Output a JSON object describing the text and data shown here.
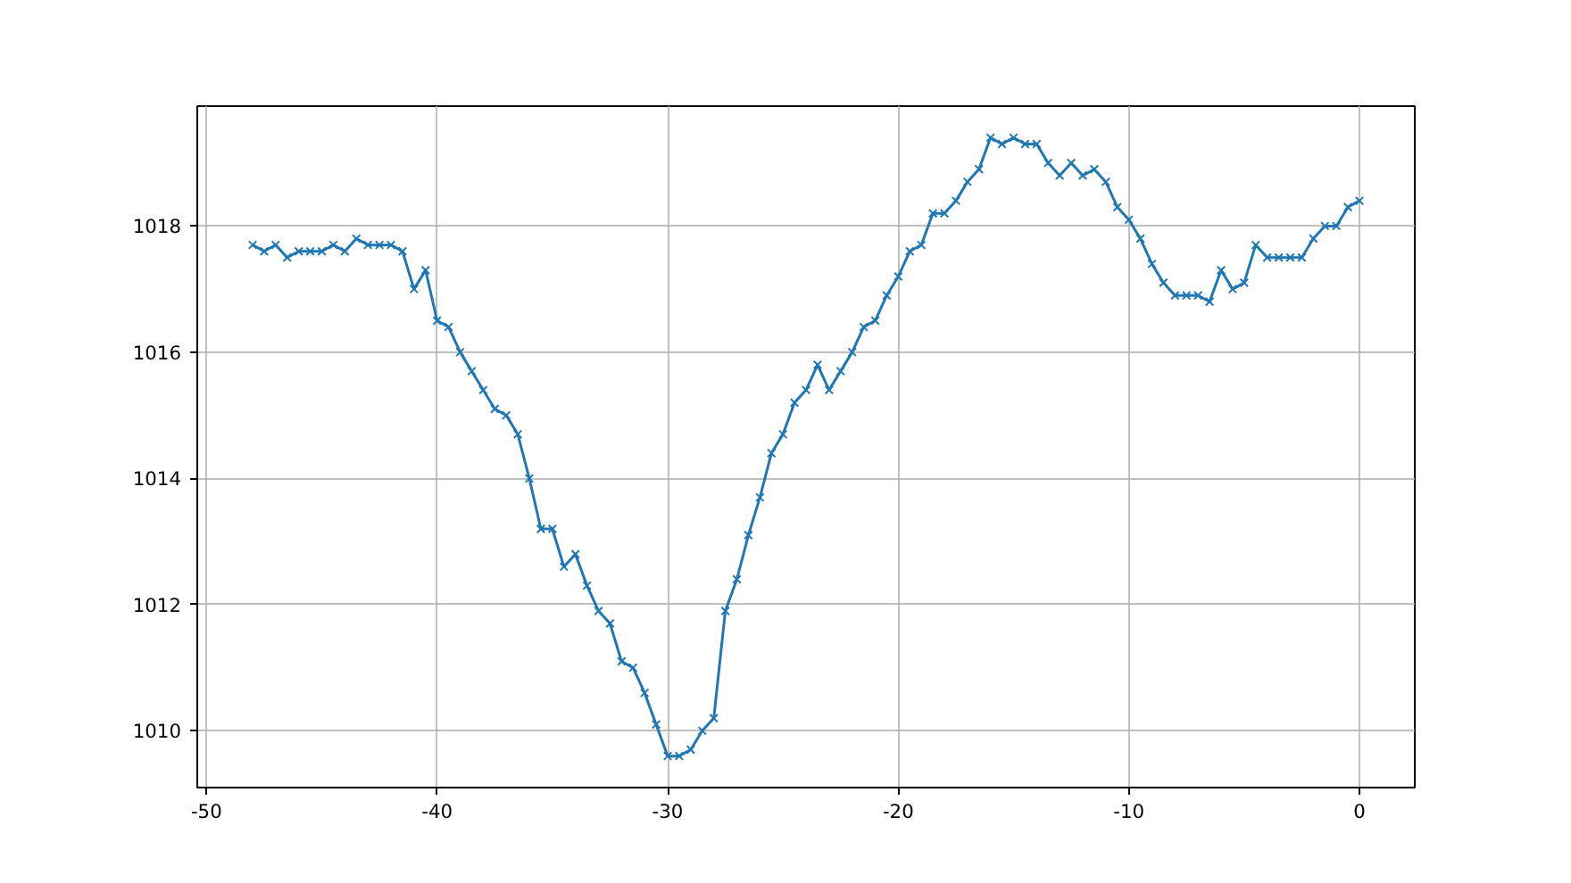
{
  "chart_data": {
    "type": "line",
    "marker": "cross",
    "line_style": "solid",
    "grid": true,
    "x": [
      -48,
      -47.5,
      -47,
      -46.5,
      -46,
      -45.5,
      -45,
      -44.5,
      -44,
      -43.5,
      -43,
      -42.5,
      -42,
      -41.5,
      -41,
      -40.5,
      -40,
      -39.5,
      -39,
      -38.5,
      -38,
      -37.5,
      -37,
      -36.5,
      -36,
      -35.5,
      -35,
      -34.5,
      -34,
      -33.5,
      -33,
      -32.5,
      -32,
      -31.5,
      -31,
      -30.5,
      -30,
      -29.5,
      -29,
      -28.5,
      -28,
      -27.5,
      -27,
      -26.5,
      -26,
      -25.5,
      -25,
      -24.5,
      -24,
      -23.5,
      -23,
      -22.5,
      -22,
      -21.5,
      -21,
      -20.5,
      -20,
      -19.5,
      -19,
      -18.5,
      -18,
      -17.5,
      -17,
      -16.5,
      -16,
      -15.5,
      -15,
      -14.5,
      -14,
      -13.5,
      -13,
      -12.5,
      -12,
      -11.5,
      -11,
      -10.5,
      -10,
      -9.5,
      -9,
      -8.5,
      -8,
      -7.5,
      -7,
      -6.5,
      -6,
      -5.5,
      -5,
      -4.5,
      -4,
      -3.5,
      -3,
      -2.5,
      -2,
      -1.5,
      -1,
      -0.5,
      0
    ],
    "series": [
      {
        "color": "#1f77b4",
        "values": [
          1017.7,
          1017.6,
          1017.7,
          1017.5,
          1017.6,
          1017.6,
          1017.6,
          1017.7,
          1017.6,
          1017.8,
          1017.7,
          1017.7,
          1017.7,
          1017.6,
          1017.0,
          1017.3,
          1016.5,
          1016.4,
          1016.0,
          1015.7,
          1015.4,
          1015.1,
          1015.0,
          1014.7,
          1014.0,
          1013.2,
          1013.2,
          1012.6,
          1012.8,
          1012.3,
          1011.9,
          1011.7,
          1011.1,
          1011.0,
          1010.6,
          1010.1,
          1009.6,
          1009.6,
          1009.7,
          1010.0,
          1010.2,
          1011.9,
          1012.4,
          1013.1,
          1013.7,
          1014.4,
          1014.7,
          1015.2,
          1015.4,
          1015.8,
          1015.4,
          1015.7,
          1016.0,
          1016.4,
          1016.5,
          1016.9,
          1017.2,
          1017.6,
          1017.7,
          1018.2,
          1018.2,
          1018.4,
          1018.7,
          1018.9,
          1019.4,
          1019.3,
          1019.4,
          1019.3,
          1019.3,
          1019.0,
          1018.8,
          1019.0,
          1018.8,
          1018.9,
          1018.7,
          1018.3,
          1018.1,
          1017.8,
          1017.4,
          1017.1,
          1016.9,
          1016.9,
          1016.9,
          1016.8,
          1017.3,
          1017.0,
          1017.1,
          1017.7,
          1017.5,
          1017.5,
          1017.5,
          1017.5,
          1017.8,
          1018.0,
          1018.0,
          1018.3,
          1018.4
        ]
      }
    ],
    "xlim": [
      -50.4,
      2.4
    ],
    "ylim": [
      1009.1,
      1019.9
    ],
    "xticks": [
      -50,
      -40,
      -30,
      -20,
      -10,
      0
    ],
    "yticks": [
      1010,
      1012,
      1014,
      1016,
      1018
    ]
  }
}
